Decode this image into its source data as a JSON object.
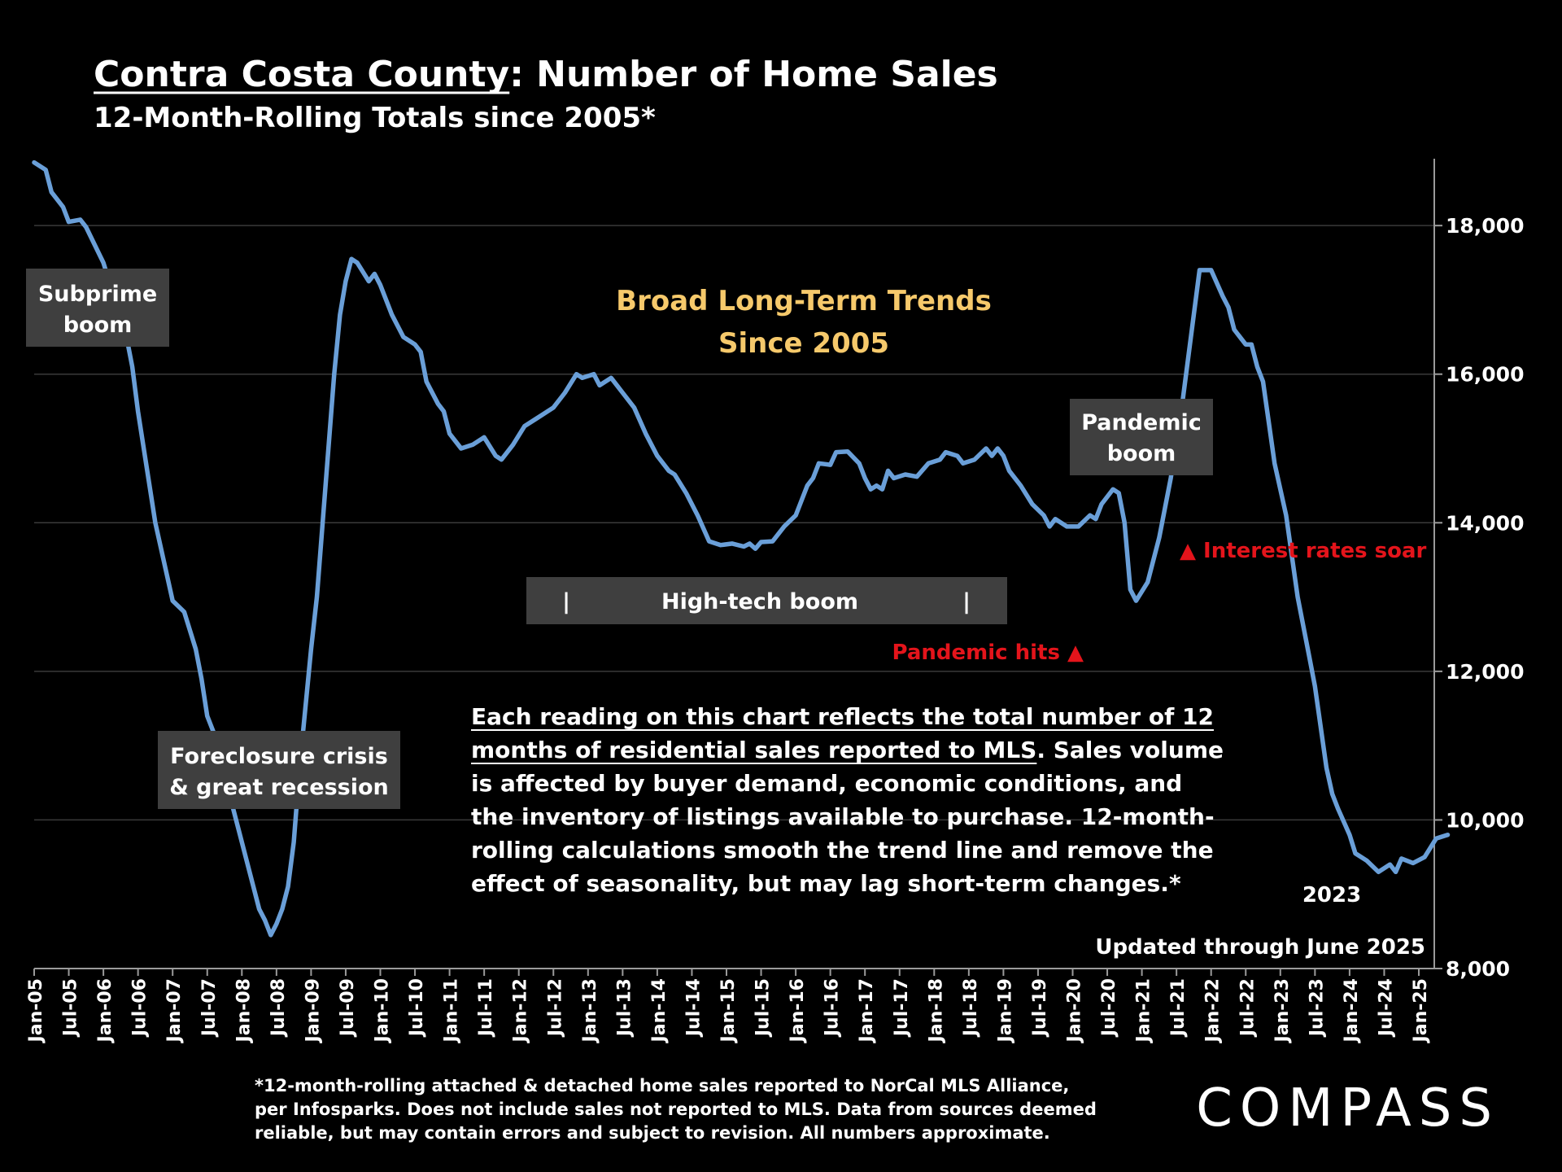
{
  "colors": {
    "background": "#000000",
    "line": "#6a9fd8",
    "text": "#ffffff",
    "box": "#3f3f3f",
    "highlight": "#f6c96b",
    "alert": "#e4141b",
    "grid": "#3a3a3a"
  },
  "header": {
    "title_underlined": "Contra Costa County",
    "title_rest": ":  Number of Home Sales",
    "subtitle": "12-Month-Rolling Totals since 2005*"
  },
  "annotations": {
    "subprime": [
      "Subprime",
      "boom"
    ],
    "foreclosure": [
      "Foreclosure crisis",
      "& great recession"
    ],
    "broad_trends": [
      "Broad Long-Term Trends",
      "Since 2005"
    ],
    "pandemic_boom": [
      "Pandemic",
      "boom"
    ],
    "high_tech": "High-tech boom",
    "high_tech_bar": "|",
    "interest_rates": "▲ Interest rates soar",
    "pandemic_hits": "Pandemic hits ▲",
    "year_2023": "2023",
    "updated": "Updated through June 2025",
    "explanation": {
      "underlined": [
        "Each reading on this chart reflects the total number of 12",
        "months of residential sales reported to MLS"
      ],
      "rest_line2": ". Sales volume",
      "lines": [
        "is affected by buyer demand, economic conditions, and",
        "the inventory of listings available to purchase. 12-month-",
        "rolling calculations smooth the trend line and remove the",
        "effect of seasonality, but may lag short-term changes.*"
      ]
    }
  },
  "footer": {
    "note": [
      "*12-month-rolling attached & detached home sales reported to NorCal MLS Alliance,",
      "per Infosparks. Does not include sales not reported to MLS. Data from sources deemed",
      "reliable, but may contain errors and subject to revision. All numbers approximate."
    ],
    "logo": "COMPASS"
  },
  "chart_data": {
    "type": "line",
    "title": "Contra Costa County:  Number of Home Sales",
    "subtitle": "12-Month-Rolling Totals since 2005*",
    "y_axis_position": "right",
    "ylim": [
      8000,
      18900
    ],
    "yticks": [
      8000,
      10000,
      12000,
      14000,
      16000,
      18000
    ],
    "ytick_labels": [
      "8,000",
      "10,000",
      "12,000",
      "14,000",
      "16,000",
      "18,000"
    ],
    "xtick_labels": [
      "Jan-05",
      "Jul-05",
      "Jan-06",
      "Jul-06",
      "Jan-07",
      "Jul-07",
      "Jan-08",
      "Jul-08",
      "Jan-09",
      "Jul-09",
      "Jan-10",
      "Jul-10",
      "Jan-11",
      "Jul-11",
      "Jan-12",
      "Jul-12",
      "Jan-13",
      "Jul-13",
      "Jan-14",
      "Jul-14",
      "Jan-15",
      "Jul-15",
      "Jan-16",
      "Jul-16",
      "Jan-17",
      "Jul-17",
      "Jan-18",
      "Jul-18",
      "Jan-19",
      "Jul-19",
      "Jan-20",
      "Jul-20",
      "Jan-21",
      "Jul-21",
      "Jan-22",
      "Jul-22",
      "Jan-23",
      "Jul-23",
      "Jan-24",
      "Jul-24",
      "Jan-25"
    ],
    "grid": true,
    "series": [
      {
        "points": [
          [
            "Jan-05",
            18850
          ],
          [
            "Mar-05",
            18750
          ],
          [
            "Apr-05",
            18450
          ],
          [
            "Jun-05",
            18250
          ],
          [
            "Jul-05",
            18050
          ],
          [
            "Sep-05",
            18080
          ],
          [
            "Oct-05",
            17980
          ],
          [
            "Jan-06",
            17500
          ],
          [
            "Mar-06",
            17000
          ],
          [
            "May-06",
            16500
          ],
          [
            "Jun-06",
            16100
          ],
          [
            "Jul-06",
            15500
          ],
          [
            "Oct-06",
            14000
          ],
          [
            "Dec-06",
            13300
          ],
          [
            "Jan-07",
            12950
          ],
          [
            "Mar-07",
            12800
          ],
          [
            "May-07",
            12300
          ],
          [
            "Jun-07",
            11900
          ],
          [
            "Jul-07",
            11400
          ],
          [
            "Sep-07",
            11000
          ],
          [
            "Oct-07",
            10600
          ],
          [
            "Dec-07",
            10000
          ],
          [
            "Feb-08",
            9400
          ],
          [
            "Mar-08",
            9100
          ],
          [
            "Apr-08",
            8800
          ],
          [
            "May-08",
            8650
          ],
          [
            "Jun-08",
            8450
          ],
          [
            "Jul-08",
            8600
          ],
          [
            "Aug-08",
            8800
          ],
          [
            "Sep-08",
            9100
          ],
          [
            "Oct-08",
            9700
          ],
          [
            "Nov-08",
            10700
          ],
          [
            "Dec-08",
            11500
          ],
          [
            "Jan-09",
            12300
          ],
          [
            "Feb-09",
            13000
          ],
          [
            "Mar-09",
            14000
          ],
          [
            "Apr-09",
            15000
          ],
          [
            "May-09",
            16000
          ],
          [
            "Jun-09",
            16800
          ],
          [
            "Jul-09",
            17250
          ],
          [
            "Aug-09",
            17550
          ],
          [
            "Sep-09",
            17500
          ],
          [
            "Nov-09",
            17250
          ],
          [
            "Dec-09",
            17350
          ],
          [
            "Jan-10",
            17200
          ],
          [
            "Mar-10",
            16800
          ],
          [
            "May-10",
            16500
          ],
          [
            "Jul-10",
            16400
          ],
          [
            "Aug-10",
            16300
          ],
          [
            "Sep-10",
            15900
          ],
          [
            "Nov-10",
            15600
          ],
          [
            "Dec-10",
            15500
          ],
          [
            "Jan-11",
            15200
          ],
          [
            "Mar-11",
            15000
          ],
          [
            "May-11",
            15050
          ],
          [
            "Jul-11",
            15150
          ],
          [
            "Sep-11",
            14900
          ],
          [
            "Oct-11",
            14850
          ],
          [
            "Dec-11",
            15050
          ],
          [
            "Feb-12",
            15300
          ],
          [
            "Apr-12",
            15400
          ],
          [
            "Jul-12",
            15550
          ],
          [
            "Sep-12",
            15750
          ],
          [
            "Nov-12",
            16000
          ],
          [
            "Dec-12",
            15950
          ],
          [
            "Feb-13",
            16000
          ],
          [
            "Mar-13",
            15850
          ],
          [
            "May-13",
            15950
          ],
          [
            "Jul-13",
            15750
          ],
          [
            "Sep-13",
            15550
          ],
          [
            "Nov-13",
            15200
          ],
          [
            "Jan-14",
            14900
          ],
          [
            "Mar-14",
            14700
          ],
          [
            "Apr-14",
            14650
          ],
          [
            "Jun-14",
            14400
          ],
          [
            "Aug-14",
            14100
          ],
          [
            "Oct-14",
            13750
          ],
          [
            "Dec-14",
            13700
          ],
          [
            "Feb-15",
            13720
          ],
          [
            "Apr-15",
            13680
          ],
          [
            "May-15",
            13720
          ],
          [
            "Jun-15",
            13650
          ],
          [
            "Jul-15",
            13740
          ],
          [
            "Sep-15",
            13750
          ],
          [
            "Nov-15",
            13950
          ],
          [
            "Jan-16",
            14100
          ],
          [
            "Mar-16",
            14500
          ],
          [
            "Apr-16",
            14600
          ],
          [
            "May-16",
            14800
          ],
          [
            "Jul-16",
            14780
          ],
          [
            "Aug-16",
            14950
          ],
          [
            "Oct-16",
            14960
          ],
          [
            "Dec-16",
            14800
          ],
          [
            "Jan-17",
            14600
          ],
          [
            "Feb-17",
            14450
          ],
          [
            "Mar-17",
            14500
          ],
          [
            "Apr-17",
            14450
          ],
          [
            "May-17",
            14700
          ],
          [
            "Jun-17",
            14600
          ],
          [
            "Aug-17",
            14650
          ],
          [
            "Oct-17",
            14620
          ],
          [
            "Dec-17",
            14800
          ],
          [
            "Feb-18",
            14850
          ],
          [
            "Mar-18",
            14950
          ],
          [
            "May-18",
            14900
          ],
          [
            "Jun-18",
            14800
          ],
          [
            "Aug-18",
            14850
          ],
          [
            "Oct-18",
            15000
          ],
          [
            "Nov-18",
            14900
          ],
          [
            "Dec-18",
            15000
          ],
          [
            "Jan-19",
            14900
          ],
          [
            "Feb-19",
            14700
          ],
          [
            "Apr-19",
            14500
          ],
          [
            "Jun-19",
            14250
          ],
          [
            "Aug-19",
            14100
          ],
          [
            "Sep-19",
            13950
          ],
          [
            "Oct-19",
            14050
          ],
          [
            "Dec-19",
            13950
          ],
          [
            "Feb-20",
            13950
          ],
          [
            "Apr-20",
            14100
          ],
          [
            "May-20",
            14050
          ],
          [
            "Jun-20",
            14250
          ],
          [
            "Aug-20",
            14450
          ],
          [
            "Sep-20",
            14400
          ],
          [
            "Oct-20",
            14000
          ],
          [
            "Nov-20",
            13100
          ],
          [
            "Dec-20",
            12950
          ],
          [
            "Feb-21",
            13200
          ],
          [
            "Apr-21",
            13800
          ],
          [
            "Jun-21",
            14600
          ],
          [
            "Aug-21",
            15600
          ],
          [
            "Oct-21",
            16800
          ],
          [
            "Nov-21",
            17400
          ],
          [
            "Jan-22",
            17400
          ],
          [
            "Mar-22",
            17050
          ],
          [
            "Apr-22",
            16900
          ],
          [
            "May-22",
            16600
          ],
          [
            "Jul-22",
            16400
          ],
          [
            "Aug-22",
            16400
          ],
          [
            "Sep-22",
            16100
          ],
          [
            "Oct-22",
            15900
          ],
          [
            "Dec-22",
            14800
          ],
          [
            "Feb-23",
            14100
          ],
          [
            "Apr-23",
            13000
          ],
          [
            "Jun-23",
            12200
          ],
          [
            "Jul-23",
            11800
          ],
          [
            "Sep-23",
            10700
          ],
          [
            "Oct-23",
            10350
          ],
          [
            "Nov-23",
            10150
          ],
          [
            "Jan-24",
            9800
          ],
          [
            "Feb-24",
            9550
          ],
          [
            "Apr-24",
            9450
          ],
          [
            "Jun-24",
            9300
          ],
          [
            "Aug-24",
            9400
          ],
          [
            "Sep-24",
            9300
          ],
          [
            "Oct-24",
            9480
          ],
          [
            "Dec-24",
            9420
          ],
          [
            "Feb-25",
            9500
          ],
          [
            "Apr-25",
            9750
          ],
          [
            "Jun-25",
            9800
          ]
        ]
      }
    ]
  }
}
